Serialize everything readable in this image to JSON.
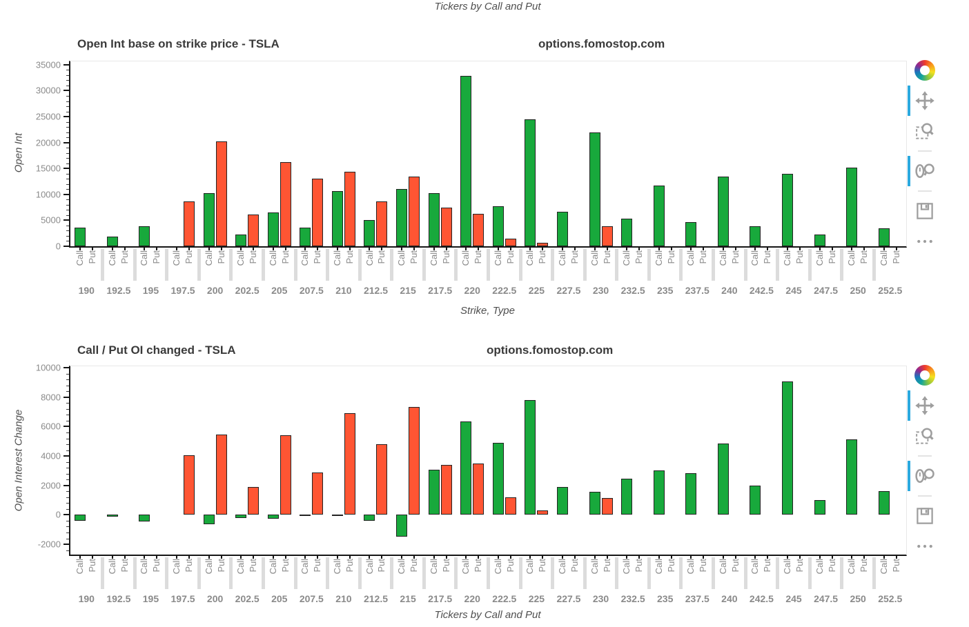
{
  "page": {
    "top_axis_label": "Tickers by Call and Put"
  },
  "colors": {
    "call": "#18a93c",
    "put": "#ff5533",
    "bar_outline": "#222222",
    "axis_line": "#161616",
    "tick_label": "#8a8a8a",
    "title_text": "#3a3a3a",
    "active_tool_accent": "#2ba9df",
    "toolbar_icon": "#9e9e9e",
    "group_separator": "#dcdcdc"
  },
  "toolbar": {
    "active_color": "#2ba9df",
    "logo": "bokeh-logo",
    "tools": [
      {
        "name": "pan",
        "active": true
      },
      {
        "name": "box-zoom",
        "active": false,
        "divider_after": true
      },
      {
        "name": "wheel-zoom",
        "active": true,
        "divider_after": true
      },
      {
        "name": "save",
        "active": false
      },
      {
        "name": "more",
        "active": false
      }
    ]
  },
  "chart_data": [
    {
      "type": "bar",
      "title": "Open Int base on strike price - TSLA",
      "watermark": "options.fomostop.com",
      "xlabel": "Strike, Type",
      "ylabel": "Open Int",
      "ylim": [
        0,
        35650
      ],
      "yticks": [
        0,
        5000,
        10000,
        15000,
        20000,
        25000,
        30000,
        35000
      ],
      "legend_position": "none",
      "grid": false,
      "bar_type_labels": [
        "Call",
        "Put"
      ],
      "categories": [
        "190",
        "192.5",
        "195",
        "197.5",
        "200",
        "202.5",
        "205",
        "207.5",
        "210",
        "212.5",
        "215",
        "217.5",
        "220",
        "222.5",
        "225",
        "227.5",
        "230",
        "232.5",
        "235",
        "237.5",
        "240",
        "242.5",
        "245",
        "247.5",
        "250",
        "252.5"
      ],
      "series": [
        {
          "name": "Call",
          "color": "#18a93c",
          "values": [
            3600,
            1900,
            3900,
            0,
            10300,
            2200,
            6500,
            3600,
            10600,
            5000,
            11000,
            10300,
            32800,
            7700,
            24500,
            6700,
            22000,
            5300,
            11700,
            4600,
            13500,
            3900,
            14000,
            2300,
            15200,
            3400
          ]
        },
        {
          "name": "Put",
          "color": "#ff5533",
          "values": [
            0,
            0,
            0,
            8700,
            20200,
            6100,
            16200,
            13100,
            14400,
            8600,
            13400,
            7500,
            6200,
            1400,
            600,
            0,
            3900,
            0,
            0,
            0,
            0,
            0,
            0,
            0,
            0,
            0
          ]
        }
      ]
    },
    {
      "type": "bar",
      "title": "Call / Put OI changed - TSLA",
      "watermark": "options.fomostop.com",
      "xlabel": "Tickers by Call and Put",
      "ylabel": "Open Interest Change",
      "ylim": [
        -2700,
        10100
      ],
      "yticks": [
        -2000,
        0,
        2000,
        4000,
        6000,
        8000,
        10000
      ],
      "legend_position": "none",
      "grid": false,
      "bar_type_labels": [
        "Call",
        "Put"
      ],
      "categories": [
        "190",
        "192.5",
        "195",
        "197.5",
        "200",
        "202.5",
        "205",
        "207.5",
        "210",
        "212.5",
        "215",
        "217.5",
        "220",
        "222.5",
        "225",
        "227.5",
        "230",
        "232.5",
        "235",
        "237.5",
        "240",
        "242.5",
        "245",
        "247.5",
        "250",
        "252.5"
      ],
      "series": [
        {
          "name": "Call",
          "color": "#18a93c",
          "values": [
            -400,
            -100,
            -450,
            0,
            -650,
            -200,
            -250,
            -80,
            -60,
            -400,
            -1500,
            3050,
            6350,
            4900,
            7800,
            1900,
            1550,
            2450,
            3000,
            2850,
            4850,
            2000,
            9050,
            1000,
            5150,
            1600
          ]
        },
        {
          "name": "Put",
          "color": "#ff5533",
          "values": [
            0,
            0,
            0,
            4050,
            5450,
            1900,
            5400,
            2900,
            6900,
            4800,
            7350,
            3400,
            3500,
            1200,
            280,
            0,
            1150,
            0,
            0,
            0,
            0,
            0,
            0,
            0,
            0,
            0
          ]
        }
      ]
    }
  ]
}
